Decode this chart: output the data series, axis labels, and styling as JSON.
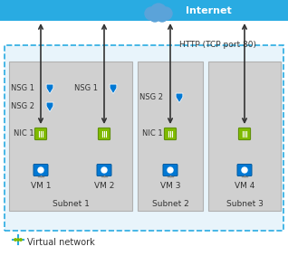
{
  "title": "Internet",
  "http_label": "HTTP (TCP port 80)",
  "vnet_label": "Virtual network",
  "subnet_labels": [
    "Subnet 1",
    "Subnet 2",
    "Subnet 3"
  ],
  "vm_labels": [
    "VM 1",
    "VM 2",
    "VM 3",
    "VM 4"
  ],
  "nsg_labels_left": [
    "NSG 1",
    "NSG 2",
    "NIC 1"
  ],
  "nsg_labels_vm2": [
    "NSG 1"
  ],
  "nsg_labels_vm3": [
    "NSG 2",
    "NIC 1"
  ],
  "internet_bar_color": "#29ABE2",
  "vnet_bg_color": "#E8F4FB",
  "vnet_border_color": "#29ABE2",
  "subnet_bg_color": "#D0D0D0",
  "subnet_border_color": "#B0B0B0",
  "arrow_color": "#333333",
  "nsg_shield_color": "#0078D4",
  "nic_color": "#7FBA00",
  "vm_color": "#0078D4",
  "text_color": "#333333",
  "figsize": [
    3.18,
    2.83
  ],
  "dpi": 100
}
